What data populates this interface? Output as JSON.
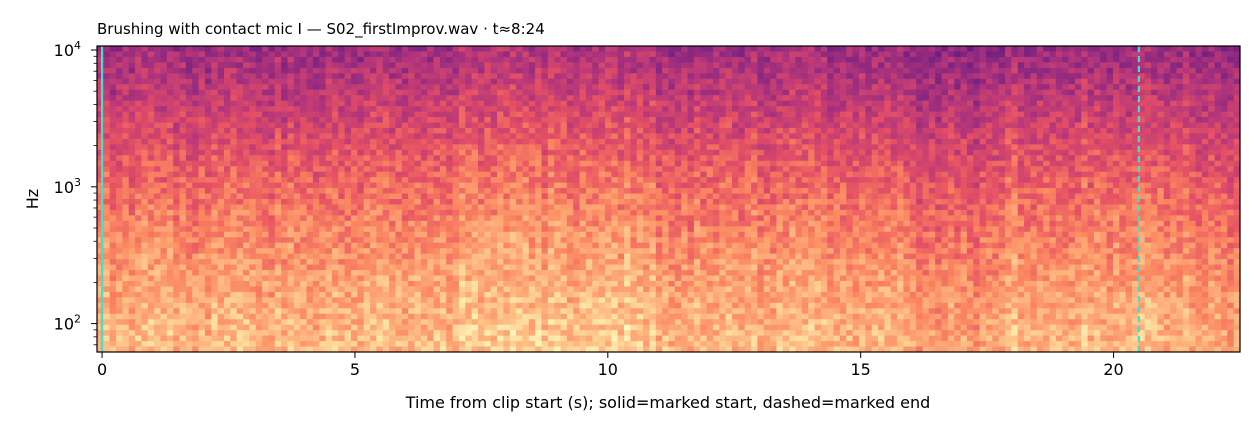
{
  "chart_data": {
    "type": "heatmap",
    "subtype": "spectrogram",
    "title": "Brushing with contact mic I  —  S02_firstImprov.wav · t≈8:24",
    "xlabel": "Time from clip start (s); solid=marked start, dashed=marked end",
    "ylabel": "Hz",
    "xlim": [
      -0.1,
      22.5
    ],
    "ylim": [
      62,
      10700
    ],
    "y_scale": "log",
    "colormap": "magma",
    "grid": false,
    "x_ticks": [
      0,
      5,
      10,
      15,
      20
    ],
    "x_tick_labels": [
      "0",
      "5",
      "10",
      "15",
      "20"
    ],
    "y_ticks": [
      100,
      1000,
      10000
    ],
    "y_tick_labels": [
      "10^2",
      "10^3",
      "10^4"
    ],
    "markers": [
      {
        "label": "marked start",
        "time_s": 0.0,
        "style": "solid",
        "color": "#40e0d0"
      },
      {
        "label": "marked end",
        "time_s": 20.5,
        "style": "dashed",
        "color": "#40e0d0"
      }
    ]
  }
}
